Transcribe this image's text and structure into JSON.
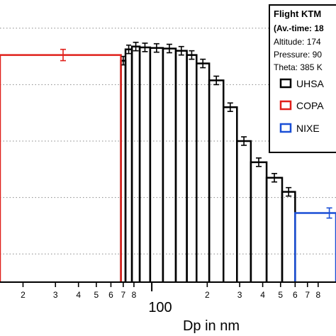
{
  "chart_data": {
    "type": "bar",
    "xscale": "log",
    "xlim": [
      15,
      1000
    ],
    "ylim": [
      0,
      1
    ],
    "grid": "horizontal dotted",
    "legend_position": "top-right",
    "xlabel": "Dp in nm",
    "x_major_tick_label": "100",
    "x_minor_tick_labels": [
      {
        "x": 20,
        "label": "2"
      },
      {
        "x": 30,
        "label": "3"
      },
      {
        "x": 40,
        "label": "4"
      },
      {
        "x": 50,
        "label": "5"
      },
      {
        "x": 60,
        "label": "6"
      },
      {
        "x": 70,
        "label": "7"
      },
      {
        "x": 80,
        "label": "8"
      },
      {
        "x": 200,
        "label": "2"
      },
      {
        "x": 300,
        "label": "3"
      },
      {
        "x": 400,
        "label": "4"
      },
      {
        "x": 500,
        "label": "5"
      },
      {
        "x": 600,
        "label": "6"
      },
      {
        "x": 700,
        "label": "7"
      },
      {
        "x": 800,
        "label": "8"
      }
    ],
    "legend": {
      "title": "Flight KTM",
      "averaging": "(Av.-time: 18",
      "altitude": "Altitude: 174",
      "pressure": "Pressure: 90",
      "theta": "Theta: 385 K",
      "entries": [
        {
          "name": "UHSA",
          "color": "#000000"
        },
        {
          "name": "COPA",
          "color": "#e0201b"
        },
        {
          "name": "NIXE",
          "color": "#1a4fd6"
        }
      ]
    },
    "series": [
      {
        "name": "UHSA",
        "color": "#000000",
        "bins": [
          {
            "from": 68,
            "to": 72,
            "value": 0.785,
            "err": 0.015
          },
          {
            "from": 72,
            "to": 78,
            "value": 0.825,
            "err": 0.015
          },
          {
            "from": 78,
            "to": 86,
            "value": 0.835,
            "err": 0.015
          },
          {
            "from": 86,
            "to": 98,
            "value": 0.832,
            "err": 0.015
          },
          {
            "from": 98,
            "to": 115,
            "value": 0.83,
            "err": 0.015
          },
          {
            "from": 115,
            "to": 135,
            "value": 0.828,
            "err": 0.015
          },
          {
            "from": 135,
            "to": 155,
            "value": 0.82,
            "err": 0.015
          },
          {
            "from": 155,
            "to": 175,
            "value": 0.805,
            "err": 0.015
          },
          {
            "from": 175,
            "to": 205,
            "value": 0.775,
            "err": 0.015
          },
          {
            "from": 205,
            "to": 245,
            "value": 0.715,
            "err": 0.015
          },
          {
            "from": 245,
            "to": 290,
            "value": 0.62,
            "err": 0.015
          },
          {
            "from": 290,
            "to": 345,
            "value": 0.5,
            "err": 0.015
          },
          {
            "from": 345,
            "to": 420,
            "value": 0.425,
            "err": 0.015
          },
          {
            "from": 420,
            "to": 510,
            "value": 0.37,
            "err": 0.015
          },
          {
            "from": 510,
            "to": 600,
            "value": 0.32,
            "err": 0.015
          }
        ]
      },
      {
        "name": "COPA",
        "color": "#e0201b",
        "bins": [
          {
            "from": 15,
            "to": 68,
            "value": 0.805,
            "center": 33,
            "err": 0.02
          }
        ]
      },
      {
        "name": "NIXE",
        "color": "#1a4fd6",
        "bins": [
          {
            "from": 600,
            "to": 1000,
            "value": 0.245,
            "center": 920,
            "err": 0.018
          }
        ]
      }
    ]
  }
}
